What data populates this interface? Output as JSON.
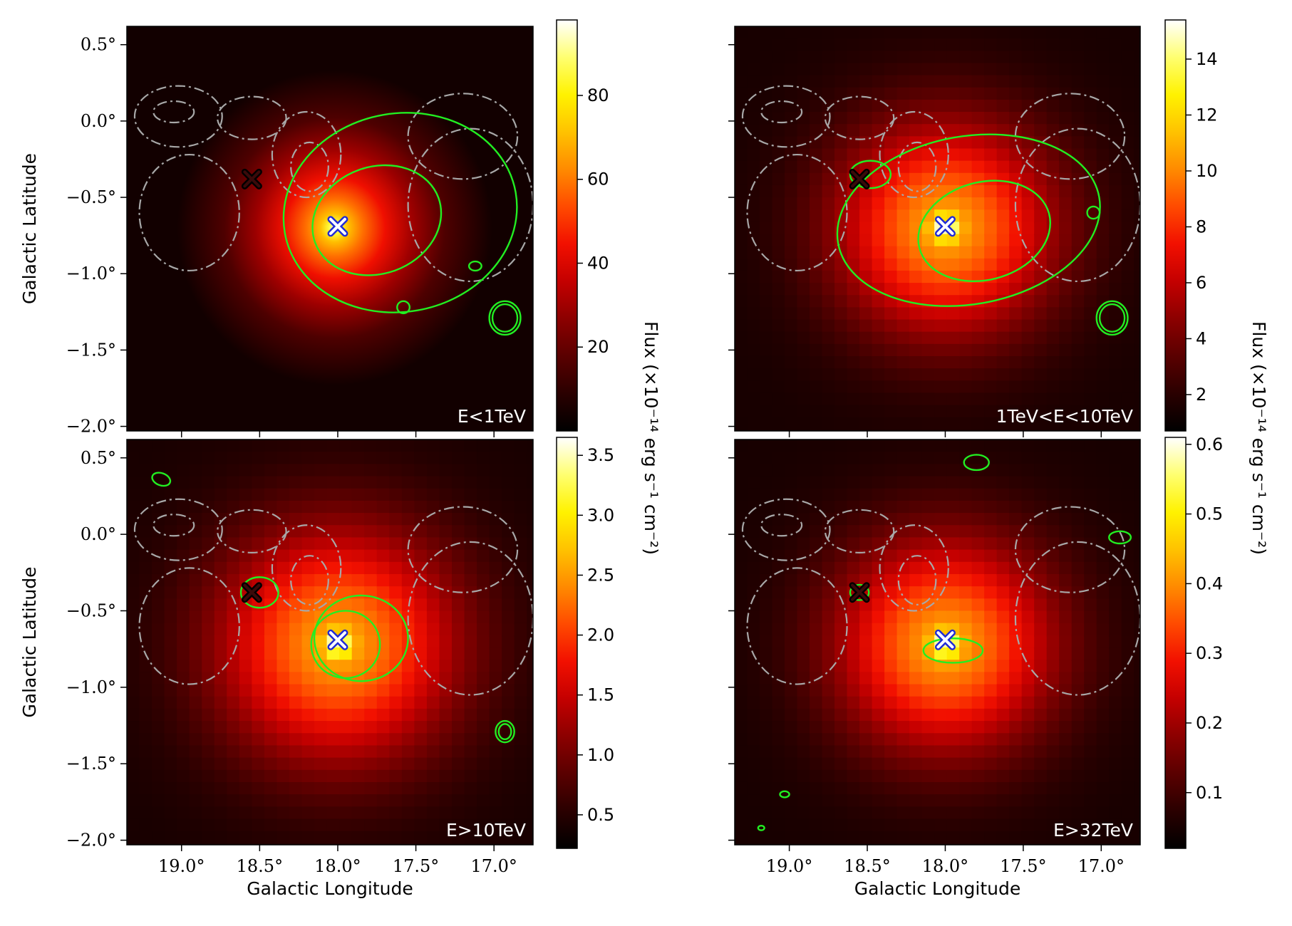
{
  "colormap": [
    "#000000",
    "#2a0000",
    "#5a0000",
    "#8c0000",
    "#c40000",
    "#f21000",
    "#ff4a00",
    "#ff8a00",
    "#ffc200",
    "#fff200",
    "#ffff70",
    "#ffffff"
  ],
  "colors": {
    "contour_tev": "#22ee22",
    "contour_gas": "#a8a8a8",
    "source_marker": "#1f2ad6",
    "pulsar_marker": "#000000",
    "panel_label": "#ffffff"
  },
  "chart_data": {
    "type": "heatmap",
    "xlabel": "Galactic Longitude",
    "ylabel": "Galactic Latitude",
    "xlim": [
      19.35,
      16.75
    ],
    "ylim": [
      -2.03,
      0.62
    ],
    "x_ticks": [
      19.0,
      18.5,
      18.0,
      17.5,
      17.0
    ],
    "x_tick_labels": [
      "19.0°",
      "18.5°",
      "18.0°",
      "17.5°",
      "17.0°"
    ],
    "y_ticks": [
      0.5,
      0.0,
      -0.5,
      -1.0,
      -1.5,
      -2.0
    ],
    "y_tick_labels": [
      "0.5°",
      "0.0°",
      "−0.5°",
      "−1.0°",
      "−1.5°",
      "−2.0°"
    ],
    "colorbar_title": "Flux (×10⁻¹⁴ erg s⁻¹ cm⁻²)",
    "markers": [
      {
        "name": "",
        "l": 18.0,
        "b": -0.69,
        "color": "#1f2ad6"
      },
      {
        "name": "",
        "l": 18.55,
        "b": -0.38,
        "color": "#000000"
      }
    ],
    "panels": [
      {
        "label": "E<1TeV",
        "peak": {
          "l": 18.02,
          "b": -0.7
        },
        "sigma_deg": 0.42,
        "pixel_deg": 0,
        "vmin": 0,
        "vmax": 98,
        "colorbar_ticks": [
          20,
          40,
          60,
          80
        ],
        "colorbar_tick_labels": [
          "20",
          "40",
          "60",
          "80"
        ]
      },
      {
        "label": "1TeV<E<10TeV",
        "peak": {
          "l": 18.0,
          "b": -0.7
        },
        "sigma_deg": 0.5,
        "pixel_deg": 0.08,
        "vmin": 0.7,
        "vmax": 15.4,
        "colorbar_ticks": [
          2,
          4,
          6,
          8,
          10,
          12,
          14
        ],
        "colorbar_tick_labels": [
          "2",
          "4",
          "6",
          "8",
          "10",
          "12",
          "14"
        ]
      },
      {
        "label": "E>10TeV",
        "peak": {
          "l": 18.0,
          "b": -0.72
        },
        "sigma_deg": 0.55,
        "pixel_deg": 0.08,
        "vmin": 0.22,
        "vmax": 3.65,
        "colorbar_ticks": [
          0.5,
          1.0,
          1.5,
          2.0,
          2.5,
          3.0,
          3.5
        ],
        "colorbar_tick_labels": [
          "0.5",
          "1.0",
          "1.5",
          "2.0",
          "2.5",
          "3.0",
          "3.5"
        ]
      },
      {
        "label": "E>32TeV",
        "peak": {
          "l": 18.0,
          "b": -0.72
        },
        "sigma_deg": 0.5,
        "pixel_deg": 0.08,
        "vmin": 0.02,
        "vmax": 0.61,
        "colorbar_ticks": [
          0.1,
          0.2,
          0.3,
          0.4,
          0.5,
          0.6
        ],
        "colorbar_tick_labels": [
          "0.1",
          "0.2",
          "0.3",
          "0.4",
          "0.5",
          "0.6"
        ]
      }
    ]
  }
}
